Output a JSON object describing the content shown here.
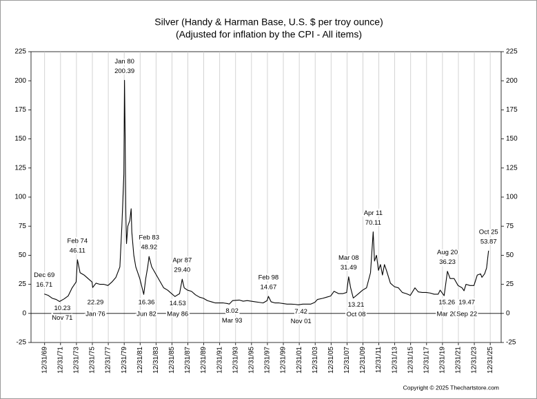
{
  "chart_data": {
    "type": "line",
    "title": "Silver (Handy & Harman Base, U.S. $ per troy ounce)",
    "subtitle": "(Adjusted for inflation by the CPI - All items)",
    "copyright": "Copyright © 2025 Thechartstore.com",
    "color": "#000000",
    "grid": true,
    "xlim": [
      "1968-04",
      "2027-05"
    ],
    "ylim": [
      -25,
      225
    ],
    "yticks": [
      -25,
      0,
      25,
      50,
      75,
      100,
      125,
      150,
      175,
      200,
      225
    ],
    "xticks": [
      {
        "value": "1969-12-31",
        "label": "12/31/69"
      },
      {
        "value": "1971-12-31",
        "label": "12/31/71"
      },
      {
        "value": "1973-12-31",
        "label": "12/31/73"
      },
      {
        "value": "1975-12-31",
        "label": "12/31/75"
      },
      {
        "value": "1977-12-31",
        "label": "12/31/77"
      },
      {
        "value": "1979-12-31",
        "label": "12/31/79"
      },
      {
        "value": "1981-12-31",
        "label": "12/31/81"
      },
      {
        "value": "1983-12-31",
        "label": "12/31/83"
      },
      {
        "value": "1985-12-31",
        "label": "12/31/85"
      },
      {
        "value": "1987-12-31",
        "label": "12/31/87"
      },
      {
        "value": "1989-12-31",
        "label": "12/31/89"
      },
      {
        "value": "1991-12-31",
        "label": "12/31/91"
      },
      {
        "value": "1993-12-31",
        "label": "12/31/93"
      },
      {
        "value": "1995-12-31",
        "label": "12/31/95"
      },
      {
        "value": "1997-12-31",
        "label": "12/31/97"
      },
      {
        "value": "1999-12-31",
        "label": "12/31/99"
      },
      {
        "value": "2001-12-31",
        "label": "12/31/01"
      },
      {
        "value": "2003-12-31",
        "label": "12/31/03"
      },
      {
        "value": "2005-12-31",
        "label": "12/31/05"
      },
      {
        "value": "2007-12-31",
        "label": "12/31/07"
      },
      {
        "value": "2009-12-31",
        "label": "12/31/09"
      },
      {
        "value": "2011-12-31",
        "label": "12/31/11"
      },
      {
        "value": "2013-12-31",
        "label": "12/31/13"
      },
      {
        "value": "2015-12-31",
        "label": "12/31/15"
      },
      {
        "value": "2017-12-31",
        "label": "12/31/17"
      },
      {
        "value": "2019-12-31",
        "label": "12/31/19"
      },
      {
        "value": "2021-12-31",
        "label": "12/31/21"
      },
      {
        "value": "2023-12-31",
        "label": "12/31/23"
      },
      {
        "value": "2025-12-31",
        "label": "12/31/25"
      }
    ],
    "x": [
      "1969-12",
      "1970-06",
      "1970-12",
      "1971-06",
      "1971-11",
      "1972-06",
      "1972-12",
      "1973-06",
      "1973-12",
      "1974-02",
      "1974-06",
      "1974-12",
      "1975-06",
      "1975-12",
      "1976-01",
      "1976-06",
      "1976-12",
      "1977-06",
      "1977-12",
      "1978-06",
      "1978-12",
      "1979-06",
      "1979-09",
      "1979-12",
      "1980-01",
      "1980-02",
      "1980-03",
      "1980-04",
      "1980-06",
      "1980-09",
      "1980-11",
      "1980-12",
      "1981-03",
      "1981-06",
      "1981-12",
      "1982-06",
      "1982-09",
      "1982-12",
      "1983-02",
      "1983-06",
      "1983-12",
      "1984-06",
      "1984-12",
      "1985-06",
      "1985-12",
      "1986-05",
      "1986-12",
      "1987-04",
      "1987-07",
      "1987-12",
      "1988-06",
      "1988-12",
      "1989-06",
      "1989-12",
      "1990-06",
      "1990-12",
      "1991-06",
      "1991-12",
      "1992-06",
      "1992-12",
      "1993-03",
      "1993-08",
      "1994-06",
      "1994-12",
      "1995-06",
      "1995-12",
      "1996-06",
      "1996-12",
      "1997-06",
      "1997-12",
      "1998-02",
      "1998-06",
      "1998-12",
      "1999-06",
      "1999-12",
      "2000-06",
      "2000-12",
      "2001-06",
      "2001-11",
      "2002-06",
      "2002-12",
      "2003-06",
      "2003-12",
      "2004-04",
      "2004-12",
      "2005-06",
      "2005-12",
      "2006-05",
      "2006-12",
      "2007-06",
      "2007-12",
      "2008-03",
      "2008-06",
      "2008-10",
      "2009-06",
      "2009-12",
      "2010-06",
      "2010-12",
      "2011-04",
      "2011-06",
      "2011-09",
      "2011-12",
      "2012-03",
      "2012-06",
      "2012-09",
      "2012-12",
      "2013-06",
      "2013-12",
      "2014-06",
      "2014-12",
      "2015-06",
      "2015-12",
      "2016-07",
      "2016-12",
      "2017-06",
      "2017-12",
      "2018-06",
      "2018-12",
      "2019-06",
      "2019-09",
      "2020-03",
      "2020-08",
      "2020-12",
      "2021-06",
      "2021-12",
      "2022-06",
      "2022-09",
      "2022-12",
      "2023-06",
      "2023-12",
      "2024-05",
      "2024-10",
      "2024-12",
      "2025-04",
      "2025-07",
      "2025-10"
    ],
    "values": [
      16.71,
      15.5,
      13,
      12,
      10.23,
      12.5,
      15,
      22,
      27,
      46.11,
      35,
      33,
      30,
      27,
      22.29,
      26,
      25,
      25,
      24,
      27,
      31,
      40,
      75,
      120,
      200.39,
      150,
      85,
      60,
      75,
      80,
      90,
      70,
      50,
      40,
      30,
      16.36,
      30,
      40,
      48.92,
      40,
      34,
      28,
      22,
      20,
      17,
      14.53,
      17,
      29.4,
      22,
      20,
      19,
      16,
      14,
      13,
      11,
      10,
      9,
      9,
      9,
      8.5,
      8.02,
      11,
      11.5,
      10.5,
      11,
      10.5,
      10,
      9.5,
      9,
      11,
      14.67,
      10,
      9,
      9,
      8.5,
      8,
      8,
      7.8,
      7.42,
      8,
      8,
      8,
      9.5,
      12,
      13,
      14,
      15,
      19,
      17,
      17,
      18,
      31.49,
      22,
      13.21,
      17,
      20,
      22,
      35,
      70.11,
      45,
      50,
      37,
      42,
      33,
      42,
      37,
      26,
      23,
      22,
      18,
      17,
      15.5,
      22,
      18.5,
      18,
      18,
      17.5,
      16.5,
      16.5,
      20,
      15.26,
      36.23,
      30,
      30,
      24,
      22,
      19.47,
      25,
      24,
      24,
      33,
      34,
      31,
      34,
      39,
      53.87
    ],
    "annotations": [
      {
        "label": "Dec 69",
        "value": 16.71,
        "x": "1969-12",
        "position": "above"
      },
      {
        "label": "Nov 71",
        "value": 10.23,
        "x": "1971-11",
        "position": "below"
      },
      {
        "label": "Feb 74",
        "value": 46.11,
        "x": "1974-02",
        "position": "above"
      },
      {
        "label": "Jan 76",
        "value": 22.29,
        "x": "1976-01",
        "position": "below"
      },
      {
        "label": "Jan 80",
        "value": 200.39,
        "x": "1980-01",
        "position": "above"
      },
      {
        "label": "Jun 82",
        "value": 16.36,
        "x": "1982-06",
        "position": "below"
      },
      {
        "label": "Feb 83",
        "value": 48.92,
        "x": "1983-02",
        "position": "above"
      },
      {
        "label": "May 86",
        "value": 14.53,
        "x": "1986-05",
        "position": "below"
      },
      {
        "label": "Apr 87",
        "value": 29.4,
        "value_label": "29.40",
        "x": "1987-04",
        "position": "above"
      },
      {
        "label": "Mar 93",
        "value": 8.02,
        "x": "1993-03",
        "position": "below"
      },
      {
        "label": "Feb 98",
        "value": 14.67,
        "x": "1998-02",
        "position": "above"
      },
      {
        "label": "Nov 01",
        "value": 7.42,
        "x": "2001-11",
        "position": "below"
      },
      {
        "label": "Mar 08",
        "value": 31.49,
        "x": "2008-03",
        "position": "above"
      },
      {
        "label": "Oct 08",
        "value": 13.21,
        "x": "2008-10",
        "position": "below"
      },
      {
        "label": "Apr 11",
        "value": 70.11,
        "x": "2011-04",
        "position": "above"
      },
      {
        "label": "Mar 20",
        "value": 15.26,
        "x": "2020-03",
        "position": "below"
      },
      {
        "label": "Aug 20",
        "value": 36.23,
        "x": "2020-08",
        "position": "above"
      },
      {
        "label": "Sep 22",
        "value": 19.47,
        "x": "2022-09",
        "position": "below"
      },
      {
        "label": "Oct 25",
        "value": 53.87,
        "x": "2025-10",
        "position": "above"
      }
    ]
  }
}
